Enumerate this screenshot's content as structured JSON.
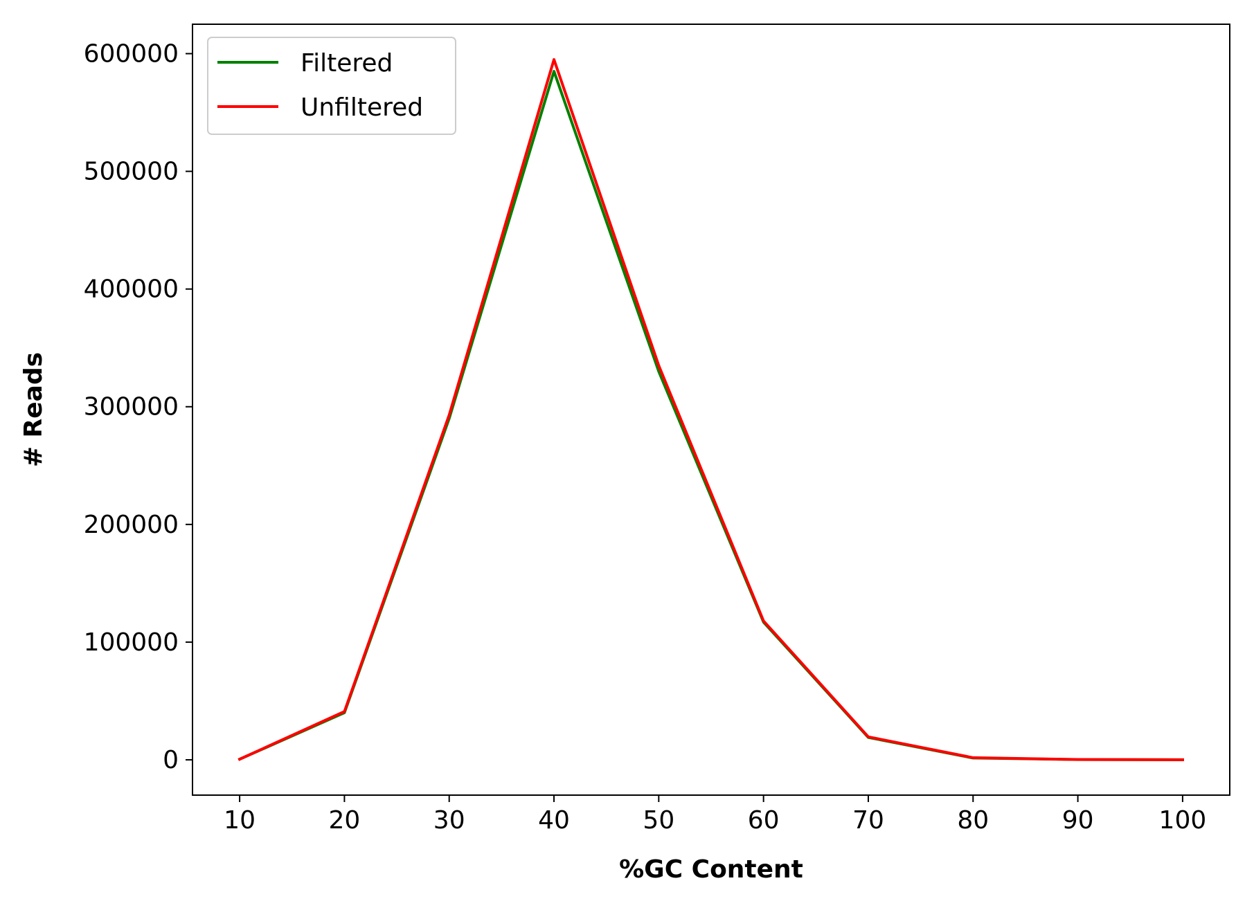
{
  "chart_data": {
    "type": "line",
    "xlabel": "%GC Content",
    "ylabel": "# Reads",
    "x": [
      10,
      20,
      30,
      40,
      50,
      60,
      70,
      80,
      90,
      100
    ],
    "xticks": [
      "10",
      "20",
      "30",
      "40",
      "50",
      "60",
      "70",
      "80",
      "90",
      "100"
    ],
    "xlim": [
      5.5,
      104.5
    ],
    "yticks": [
      "0",
      "100000",
      "200000",
      "300000",
      "400000",
      "500000",
      "600000"
    ],
    "ylim": [
      -30000,
      625000
    ],
    "grid": false,
    "legend_position": "top-left",
    "series": [
      {
        "name": "Filtered",
        "color": "#008000",
        "values": [
          500,
          40000,
          290000,
          585000,
          330000,
          117000,
          19000,
          1500,
          200,
          50
        ]
      },
      {
        "name": "Unfiltered",
        "color": "#ff0000",
        "values": [
          500,
          41000,
          293000,
          595000,
          335000,
          118000,
          19500,
          1800,
          250,
          60
        ]
      }
    ]
  }
}
